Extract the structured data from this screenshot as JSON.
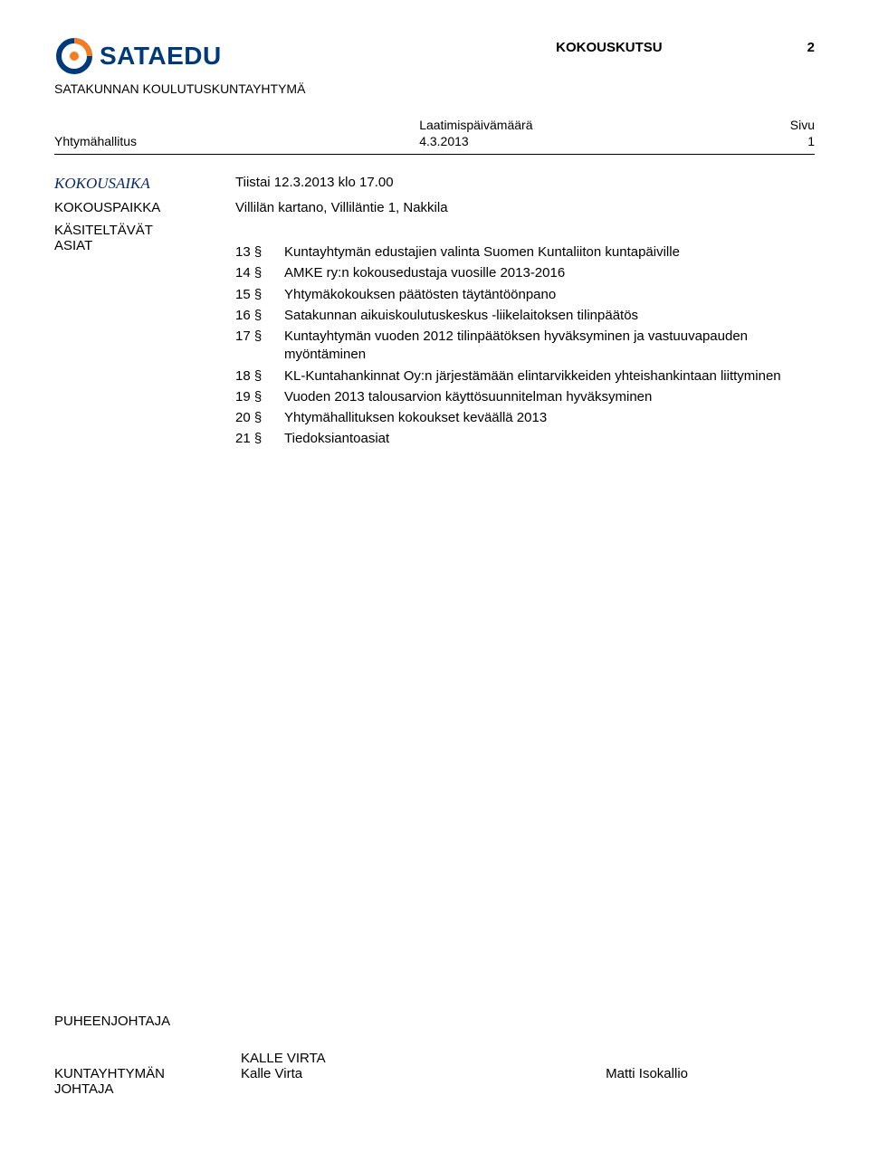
{
  "colors": {
    "text": "#000000",
    "logo_blue": "#003a7a",
    "logo_orange": "#f57c1f",
    "italic_label": "#0a2a66",
    "background": "#ffffff"
  },
  "header": {
    "logo_text": "SATAEDU",
    "doc_title": "KOKOUSKUTSU",
    "doc_number": "2",
    "org_name": "SATAKUNNAN KOULUTUSKUNTAYHTYMÄ",
    "date_heading": "Laatimispäivämäärä",
    "page_heading": "Sivu",
    "body_label": "Yhtymähallitus",
    "date_value": "4.3.2013",
    "page_value": "1"
  },
  "meta": {
    "time_label": "KOKOUSAIKA",
    "time_value": "Tiistai 12.3.2013 klo 17.00",
    "place_label": "KOKOUSPAIKKA",
    "place_value": "Villilän kartano, Villiläntie 1, Nakkila",
    "items_label_1": "KÄSITELTÄVÄT",
    "items_label_2": "ASIAT"
  },
  "agenda": [
    {
      "num": "13 §",
      "text": "Kuntayhtymän edustajien valinta Suomen Kuntaliiton kuntapäiville"
    },
    {
      "num": "14 §",
      "text": "AMKE ry:n kokousedustaja vuosille 2013-2016"
    },
    {
      "num": "15 §",
      "text": "Yhtymäkokouksen päätösten täytäntöönpano"
    },
    {
      "num": "16 §",
      "text": "Satakunnan aikuiskoulutuskeskus -liikelaitoksen tilinpäätös"
    },
    {
      "num": "17 §",
      "text": "Kuntayhtymän vuoden 2012 tilinpäätöksen hyväksyminen ja vastuuvapauden myöntäminen"
    },
    {
      "num": "18 §",
      "text": "KL-Kuntahankinnat Oy:n järjestämään elintarvikkeiden yhteishankintaan liittyminen"
    },
    {
      "num": "19 §",
      "text": "Vuoden 2013 talousarvion käyttösuunnitelman hyväksyminen"
    },
    {
      "num": "20 §",
      "text": "Yhtymähallituksen kokoukset keväällä 2013"
    },
    {
      "num": "21 §",
      "text": "Tiedoksiantoasiat"
    }
  ],
  "footer": {
    "chair_label": "PUHEENJOHTAJA",
    "chair_caps": "KALLE VIRTA",
    "chair_name": "Kalle Virta",
    "director_label_1": "KUNTAYHTYMÄN",
    "director_label_2": "JOHTAJA",
    "director_name": "Matti Isokallio"
  }
}
